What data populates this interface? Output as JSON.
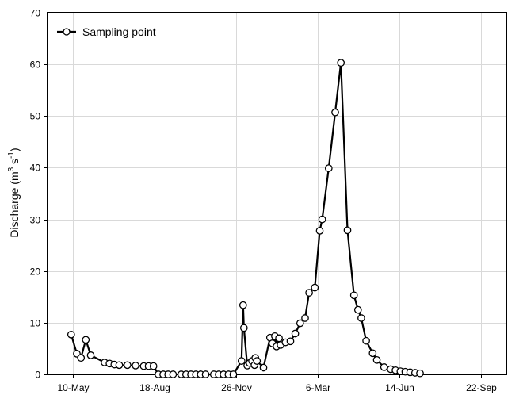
{
  "chart_data": {
    "type": "line",
    "x_type": "date",
    "xlabel": "",
    "ylabel": "Discharge (m³ s⁻¹)",
    "ylabel_parts": {
      "pre": "Discharge (m",
      "sup1": "3",
      "mid": " s",
      "sup2": "-1",
      "post": ")"
    },
    "x_tick_labels": [
      "10-May",
      "18-Aug",
      "26-Nov",
      "6-Mar",
      "14-Jun",
      "22-Sep"
    ],
    "x_ticks": [
      "2019-05-10",
      "2019-08-18",
      "2019-11-26",
      "2020-03-06",
      "2020-06-14",
      "2020-09-22"
    ],
    "xlim": [
      "2019-04-09",
      "2020-10-23"
    ],
    "ylim": [
      0,
      70
    ],
    "y_ticks": [
      0,
      10,
      20,
      30,
      40,
      50,
      60,
      70
    ],
    "grid": true,
    "legend_position": "top-left",
    "series": [
      {
        "name": "Sampling point",
        "color": "#000000",
        "marker": "open-circle",
        "points": [
          [
            "2019-05-08",
            7.7
          ],
          [
            "2019-05-15",
            4.0
          ],
          [
            "2019-05-20",
            3.2
          ],
          [
            "2019-05-26",
            6.7
          ],
          [
            "2019-06-01",
            3.7
          ],
          [
            "2019-06-18",
            2.3
          ],
          [
            "2019-06-24",
            2.1
          ],
          [
            "2019-06-30",
            1.9
          ],
          [
            "2019-07-06",
            1.8
          ],
          [
            "2019-07-16",
            1.8
          ],
          [
            "2019-07-26",
            1.7
          ],
          [
            "2019-08-05",
            1.6
          ],
          [
            "2019-08-11",
            1.6
          ],
          [
            "2019-08-17",
            1.6
          ],
          [
            "2019-08-23",
            0.0
          ],
          [
            "2019-08-29",
            0.0
          ],
          [
            "2019-09-04",
            0.0
          ],
          [
            "2019-09-10",
            0.0
          ],
          [
            "2019-09-20",
            0.0
          ],
          [
            "2019-09-26",
            0.0
          ],
          [
            "2019-10-02",
            0.0
          ],
          [
            "2019-10-08",
            0.0
          ],
          [
            "2019-10-14",
            0.0
          ],
          [
            "2019-10-20",
            0.0
          ],
          [
            "2019-10-30",
            0.0
          ],
          [
            "2019-11-05",
            0.0
          ],
          [
            "2019-11-11",
            0.0
          ],
          [
            "2019-11-17",
            0.0
          ],
          [
            "2019-11-23",
            0.0
          ],
          [
            "2019-12-03",
            2.6
          ],
          [
            "2019-12-05",
            13.4
          ],
          [
            "2019-12-06",
            9.0
          ],
          [
            "2019-12-10",
            1.7
          ],
          [
            "2019-12-13",
            2.2
          ],
          [
            "2019-12-16",
            2.6
          ],
          [
            "2019-12-19",
            1.8
          ],
          [
            "2019-12-20",
            3.2
          ],
          [
            "2019-12-22",
            2.6
          ],
          [
            "2019-12-30",
            1.3
          ],
          [
            "2020-01-07",
            7.1
          ],
          [
            "2020-01-10",
            6.0
          ],
          [
            "2020-01-13",
            7.4
          ],
          [
            "2020-01-15",
            5.4
          ],
          [
            "2020-01-18",
            7.0
          ],
          [
            "2020-01-20",
            5.7
          ],
          [
            "2020-01-26",
            6.2
          ],
          [
            "2020-02-01",
            6.4
          ],
          [
            "2020-02-07",
            7.9
          ],
          [
            "2020-02-13",
            9.9
          ],
          [
            "2020-02-19",
            10.9
          ],
          [
            "2020-02-24",
            15.8
          ],
          [
            "2020-03-02",
            16.8
          ],
          [
            "2020-03-08",
            27.8
          ],
          [
            "2020-03-11",
            30.0
          ],
          [
            "2020-03-19",
            39.9
          ],
          [
            "2020-03-27",
            50.7
          ],
          [
            "2020-04-03",
            60.3
          ],
          [
            "2020-04-11",
            27.9
          ],
          [
            "2020-04-19",
            15.3
          ],
          [
            "2020-04-24",
            12.5
          ],
          [
            "2020-04-28",
            10.9
          ],
          [
            "2020-05-04",
            6.5
          ],
          [
            "2020-05-12",
            4.1
          ],
          [
            "2020-05-17",
            2.8
          ],
          [
            "2020-05-26",
            1.4
          ],
          [
            "2020-06-03",
            1.0
          ],
          [
            "2020-06-09",
            0.8
          ],
          [
            "2020-06-15",
            0.6
          ],
          [
            "2020-06-21",
            0.5
          ],
          [
            "2020-06-27",
            0.4
          ],
          [
            "2020-07-03",
            0.3
          ],
          [
            "2020-07-09",
            0.2
          ]
        ]
      }
    ]
  }
}
